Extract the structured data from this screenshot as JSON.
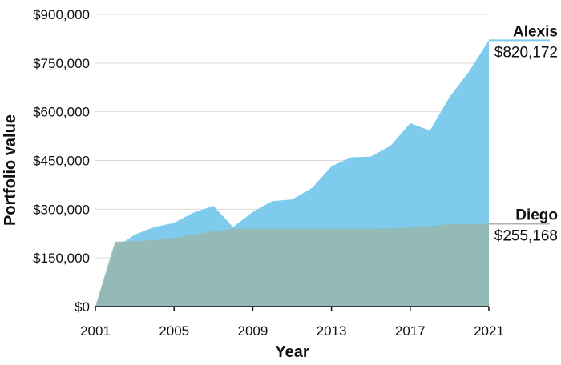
{
  "chart_data": {
    "type": "area",
    "title": "",
    "xlabel": "Year",
    "ylabel": "Portfolio value",
    "xlim": [
      2001,
      2021
    ],
    "ylim": [
      0,
      900000
    ],
    "x_ticks": [
      2001,
      2005,
      2009,
      2013,
      2017,
      2021
    ],
    "x_tick_labels": [
      "2001",
      "2005",
      "2009",
      "2013",
      "2017",
      "2021"
    ],
    "y_ticks": [
      0,
      150000,
      300000,
      450000,
      600000,
      750000,
      900000
    ],
    "y_tick_labels": [
      "$0",
      "$150,000",
      "$300,000",
      "$450,000",
      "$600,000",
      "$750,000",
      "$900,000"
    ],
    "grid": "horizontal",
    "x": [
      2001,
      2002,
      2003,
      2004,
      2005,
      2006,
      2007,
      2008,
      2009,
      2010,
      2011,
      2012,
      2013,
      2014,
      2015,
      2016,
      2017,
      2018,
      2019,
      2020,
      2021
    ],
    "series": [
      {
        "name": "Alexis",
        "end_label": "$820,172",
        "color": "#7ecbee",
        "values": [
          0,
          180000,
          222000,
          245000,
          258000,
          290000,
          310000,
          245000,
          292000,
          325000,
          330000,
          365000,
          432000,
          460000,
          462000,
          495000,
          565000,
          542000,
          645000,
          725000,
          820172
        ]
      },
      {
        "name": "Diego",
        "end_label": "$255,168",
        "color": "#95b9b2",
        "values": [
          0,
          200000,
          202000,
          205000,
          212000,
          222000,
          232000,
          240000,
          240000,
          240000,
          240000,
          240000,
          240000,
          240000,
          240000,
          241000,
          243000,
          248000,
          254000,
          254000,
          255168
        ]
      }
    ]
  }
}
